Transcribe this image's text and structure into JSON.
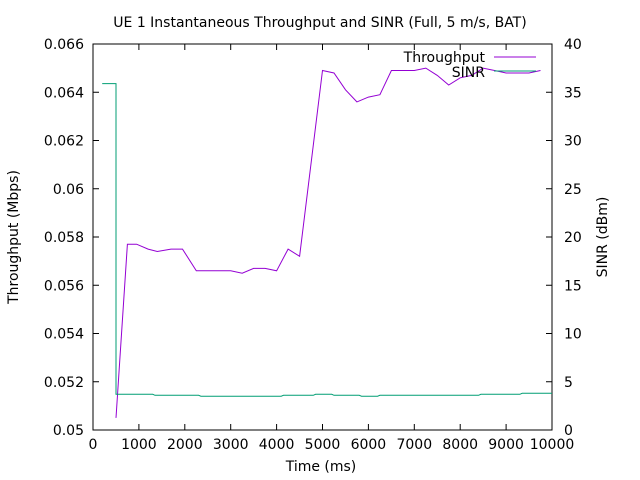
{
  "chart_data": {
    "type": "line",
    "title": "UE 1 Instantaneous Throughput and SINR (Full, 5 m/s, BAT)",
    "xlabel": "Time (ms)",
    "ylabel": "Throughput (Mbps)",
    "y2label": "SINR (dBm)",
    "xlim": [
      0,
      10000
    ],
    "ylim": [
      0.05,
      0.066
    ],
    "y2lim": [
      0,
      40
    ],
    "xticks": [
      0,
      1000,
      2000,
      3000,
      4000,
      5000,
      6000,
      7000,
      8000,
      9000,
      10000
    ],
    "yticks": [
      "0.05",
      "0.052",
      "0.054",
      "0.056",
      "0.058",
      "0.06",
      "0.062",
      "0.064",
      "0.066"
    ],
    "y2ticks": [
      0,
      5,
      10,
      15,
      20,
      25,
      30,
      35,
      40
    ],
    "legend_position": "top-right",
    "grid": false,
    "series": [
      {
        "name": "Throughput",
        "axis": "y",
        "color": "#9400d3",
        "x": [
          500,
          750,
          950,
          1200,
          1400,
          1700,
          1950,
          2250,
          2500,
          2750,
          3000,
          3250,
          3500,
          3750,
          4000,
          4250,
          4500,
          5000,
          5250,
          5500,
          5750,
          6000,
          6250,
          6500,
          6750,
          7000,
          7250,
          7500,
          7750,
          8000,
          8250,
          8500,
          8750,
          9000,
          9250,
          9500,
          9750
        ],
        "values": [
          0.0505,
          0.0577,
          0.0577,
          0.0575,
          0.0574,
          0.0575,
          0.0575,
          0.0566,
          0.0566,
          0.0566,
          0.0566,
          0.0565,
          0.0567,
          0.0567,
          0.0566,
          0.0575,
          0.0572,
          0.0649,
          0.0648,
          0.0641,
          0.0636,
          0.0638,
          0.0639,
          0.0649,
          0.0649,
          0.0649,
          0.065,
          0.0647,
          0.0643,
          0.0646,
          0.0647,
          0.065,
          0.0649,
          0.0648,
          0.0648,
          0.0648,
          0.0649
        ]
      },
      {
        "name": "SINR",
        "axis": "y2",
        "color": "#009e73",
        "x": [
          200,
          500,
          500,
          1300,
          1350,
          2300,
          2350,
          4100,
          4150,
          4800,
          4850,
          5200,
          5250,
          5800,
          5850,
          6200,
          6250,
          8400,
          8450,
          9300,
          9350,
          10000
        ],
        "values": [
          35.9,
          35.9,
          3.7,
          3.7,
          3.6,
          3.6,
          3.5,
          3.5,
          3.6,
          3.6,
          3.7,
          3.7,
          3.6,
          3.6,
          3.5,
          3.5,
          3.6,
          3.6,
          3.7,
          3.7,
          3.8,
          3.8
        ]
      }
    ]
  }
}
